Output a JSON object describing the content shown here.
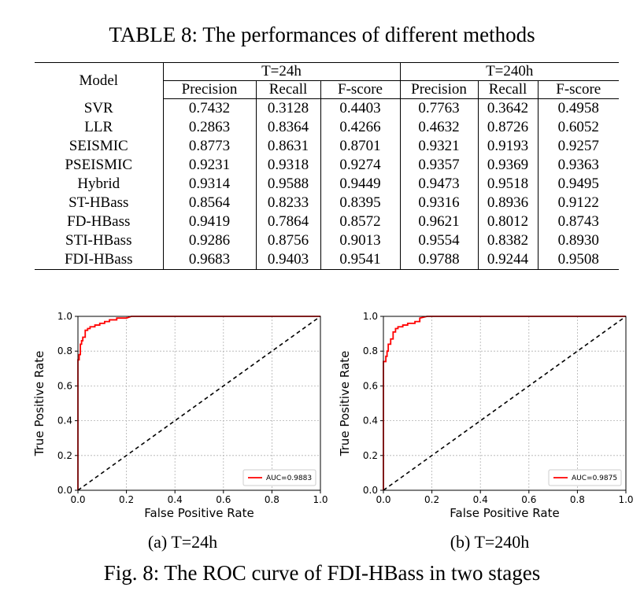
{
  "table": {
    "caption": "TABLE 8: The performances of different methods",
    "model_header": "Model",
    "groups": [
      "T=24h",
      "T=240h"
    ],
    "columns": [
      "Precision",
      "Recall",
      "F-score",
      "Precision",
      "Recall",
      "F-score"
    ],
    "rows": [
      {
        "model": "SVR",
        "values": [
          "0.7432",
          "0.3128",
          "0.4403",
          "0.7763",
          "0.3642",
          "0.4958"
        ],
        "bold": []
      },
      {
        "model": "LLR",
        "values": [
          "0.2863",
          "0.8364",
          "0.4266",
          "0.4632",
          "0.8726",
          "0.6052"
        ],
        "bold": []
      },
      {
        "model": "SEISMIC",
        "values": [
          "0.8773",
          "0.8631",
          "0.8701",
          "0.9321",
          "0.9193",
          "0.9257"
        ],
        "bold": []
      },
      {
        "model": "PSEISMIC",
        "values": [
          "0.9231",
          "0.9318",
          "0.9274",
          "0.9357",
          "0.9369",
          "0.9363"
        ],
        "bold": []
      },
      {
        "model": "Hybrid",
        "values": [
          "0.9314",
          "0.9588",
          "0.9449",
          "0.9473",
          "0.9518",
          "0.9495"
        ],
        "bold": [
          1,
          4
        ]
      },
      {
        "model": "ST-HBass",
        "values": [
          "0.8564",
          "0.8233",
          "0.8395",
          "0.9316",
          "0.8936",
          "0.9122"
        ],
        "bold": []
      },
      {
        "model": "FD-HBass",
        "values": [
          "0.9419",
          "0.7864",
          "0.8572",
          "0.9621",
          "0.8012",
          "0.8743"
        ],
        "bold": []
      },
      {
        "model": "STI-HBass",
        "values": [
          "0.9286",
          "0.8756",
          "0.9013",
          "0.9554",
          "0.8382",
          "0.8930"
        ],
        "bold": []
      },
      {
        "model": "FDI-HBass",
        "values": [
          "0.9683",
          "0.9403",
          "0.9541",
          "0.9788",
          "0.9244",
          "0.9508"
        ],
        "bold": [
          0,
          2,
          3,
          5
        ]
      }
    ]
  },
  "chart_data": [
    {
      "type": "line",
      "caption": "(a) T=24h",
      "xlabel": "False Positive Rate",
      "ylabel": "True Positive Rate",
      "xlim": [
        0,
        1
      ],
      "ylim": [
        0,
        1
      ],
      "xticks": [
        "0.0",
        "0.2",
        "0.4",
        "0.6",
        "0.8",
        "1.0"
      ],
      "yticks": [
        "0.0",
        "0.2",
        "0.4",
        "0.6",
        "0.8",
        "1.0"
      ],
      "grid": true,
      "legend_position": "bottom-right",
      "series": [
        {
          "name": "AUC=0.9883",
          "color": "#ff0000",
          "style": "solid",
          "x": [
            0,
            0,
            0.005,
            0.005,
            0.01,
            0.01,
            0.015,
            0.015,
            0.02,
            0.02,
            0.03,
            0.03,
            0.04,
            0.04,
            0.05,
            0.05,
            0.07,
            0.07,
            0.09,
            0.09,
            0.11,
            0.11,
            0.13,
            0.13,
            0.16,
            0.16,
            0.2,
            0.22,
            1.0
          ],
          "y": [
            0,
            0.75,
            0.75,
            0.78,
            0.78,
            0.84,
            0.84,
            0.86,
            0.86,
            0.88,
            0.88,
            0.92,
            0.92,
            0.93,
            0.93,
            0.94,
            0.94,
            0.95,
            0.95,
            0.96,
            0.96,
            0.97,
            0.97,
            0.98,
            0.98,
            0.99,
            0.99,
            1.0,
            1.0
          ]
        },
        {
          "color": "#000000",
          "style": "dashed",
          "x": [
            0,
            1
          ],
          "y": [
            0,
            1
          ]
        }
      ]
    },
    {
      "type": "line",
      "caption": "(b) T=240h",
      "xlabel": "False Positive Rate",
      "ylabel": "True Positive Rate",
      "xlim": [
        0,
        1
      ],
      "ylim": [
        0,
        1
      ],
      "xticks": [
        "0.0",
        "0.2",
        "0.4",
        "0.6",
        "0.8",
        "1.0"
      ],
      "yticks": [
        "0.0",
        "0.2",
        "0.4",
        "0.6",
        "0.8",
        "1.0"
      ],
      "grid": true,
      "legend_position": "bottom-right",
      "series": [
        {
          "name": "AUC=0.9875",
          "color": "#ff0000",
          "style": "solid",
          "x": [
            0,
            0,
            0.01,
            0.01,
            0.015,
            0.015,
            0.02,
            0.02,
            0.03,
            0.03,
            0.04,
            0.04,
            0.05,
            0.05,
            0.06,
            0.06,
            0.08,
            0.08,
            0.1,
            0.1,
            0.13,
            0.13,
            0.15,
            0.15,
            0.18,
            1.0
          ],
          "y": [
            0,
            0.74,
            0.74,
            0.77,
            0.77,
            0.8,
            0.8,
            0.84,
            0.84,
            0.87,
            0.87,
            0.91,
            0.91,
            0.93,
            0.93,
            0.94,
            0.94,
            0.95,
            0.95,
            0.96,
            0.96,
            0.97,
            0.97,
            0.99,
            1.0,
            1.0
          ]
        },
        {
          "color": "#000000",
          "style": "dashed",
          "x": [
            0,
            1
          ],
          "y": [
            0,
            1
          ]
        }
      ]
    }
  ],
  "figure": {
    "caption": "Fig. 8: The ROC curve of FDI-HBass in two stages"
  }
}
